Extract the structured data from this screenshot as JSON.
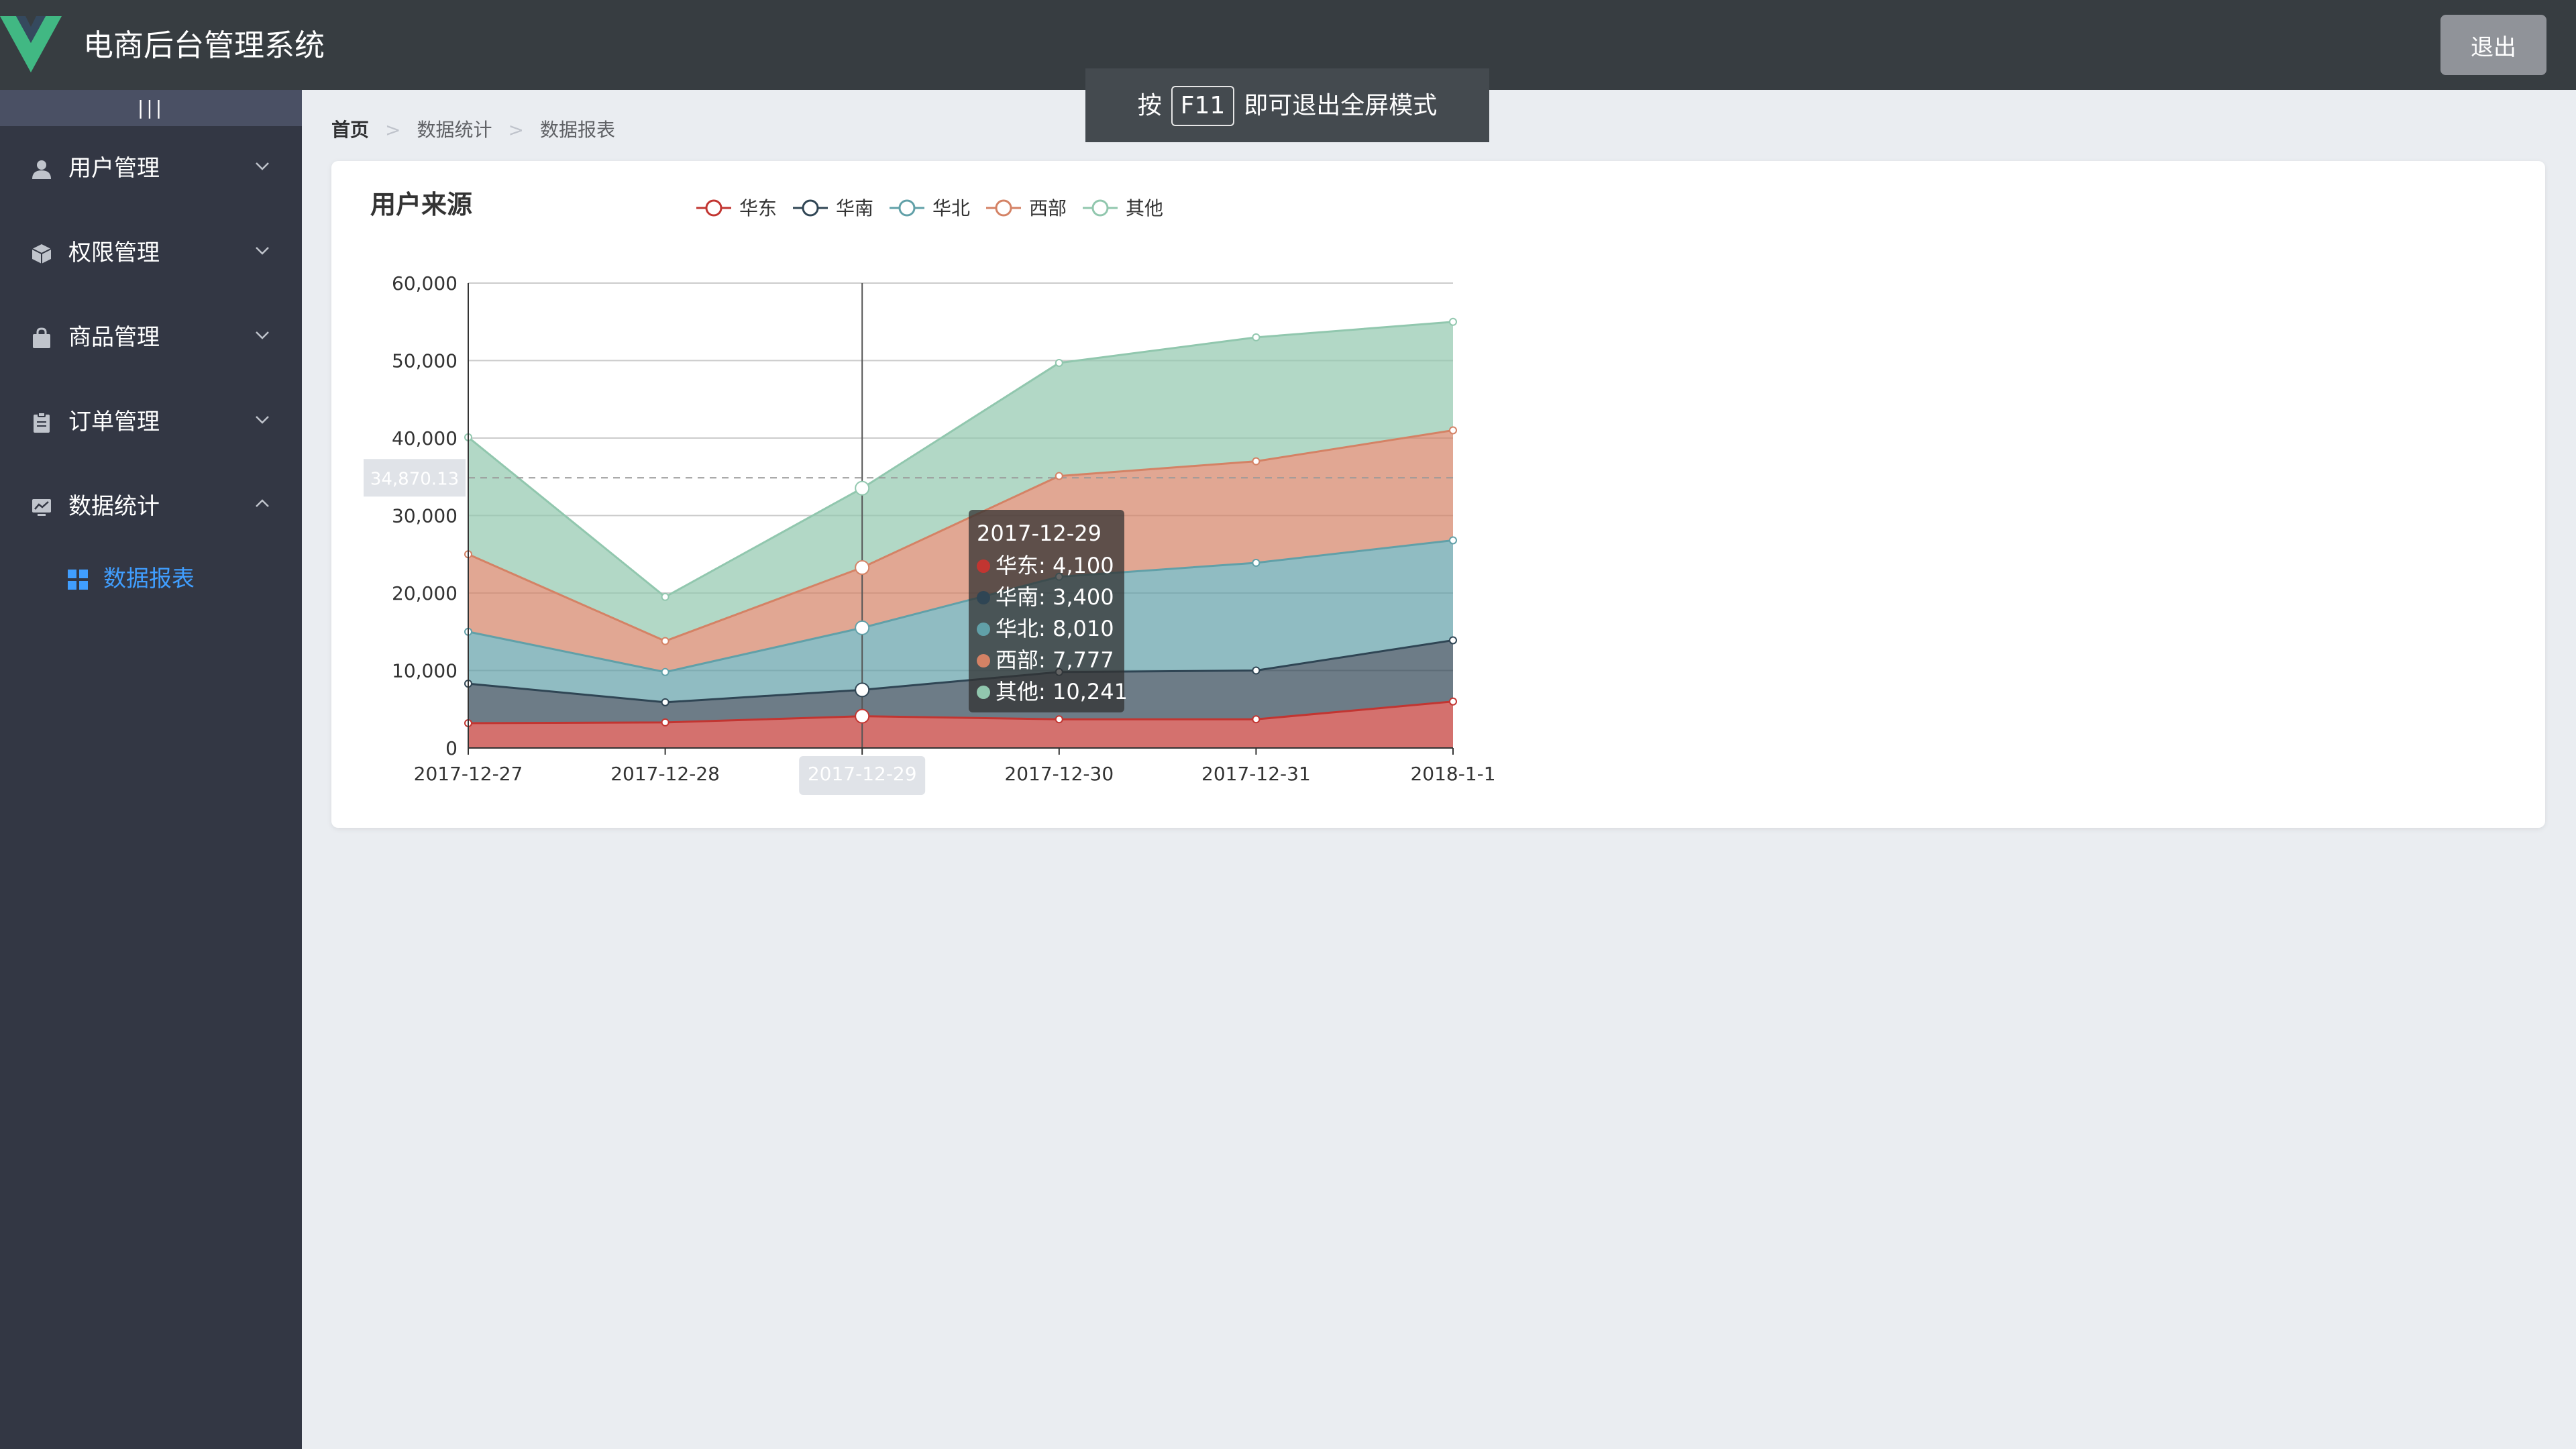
{
  "header": {
    "title": "电商后台管理系统",
    "logout_label": "退出"
  },
  "sidebar": {
    "toggle_label": "|||",
    "items": [
      {
        "label": "用户管理",
        "icon": "user-icon",
        "expanded": false
      },
      {
        "label": "权限管理",
        "icon": "box-icon",
        "expanded": false
      },
      {
        "label": "商品管理",
        "icon": "bag-icon",
        "expanded": false
      },
      {
        "label": "订单管理",
        "icon": "clipboard-icon",
        "expanded": false
      },
      {
        "label": "数据统计",
        "icon": "chart-icon",
        "expanded": true,
        "children": [
          {
            "label": "数据报表",
            "icon": "grid-icon",
            "active": true
          }
        ]
      }
    ]
  },
  "breadcrumb": {
    "home": "首页",
    "level1": "数据统计",
    "level2": "数据报表"
  },
  "fullscreen_toast": {
    "prefix": "按",
    "key": "F11",
    "suffix": "即可退出全屏模式"
  },
  "chart_data": {
    "type": "area",
    "title": "用户来源",
    "stacked": true,
    "categories": [
      "2017-12-27",
      "2017-12-28",
      "2017-12-29",
      "2017-12-30",
      "2017-12-31",
      "2018-1-1"
    ],
    "yticks": [
      "0",
      "10,000",
      "20,000",
      "30,000",
      "40,000",
      "50,000",
      "60,000"
    ],
    "ylim": [
      0,
      60000
    ],
    "grid": true,
    "legend_position": "top",
    "series": [
      {
        "name": "华东",
        "color": "#c23531",
        "values": [
          3200,
          3300,
          4100,
          3700,
          3700,
          6000
        ]
      },
      {
        "name": "华南",
        "color": "#2f4554",
        "values": [
          5100,
          2600,
          3400,
          6100,
          6300,
          7900
        ]
      },
      {
        "name": "华北",
        "color": "#61a0a8",
        "values": [
          6700,
          3900,
          8010,
          12300,
          13900,
          12900
        ]
      },
      {
        "name": "西部",
        "color": "#d48265",
        "values": [
          10000,
          4000,
          7777,
          13000,
          13100,
          14200
        ]
      },
      {
        "name": "其他",
        "color": "#91c7ae",
        "values": [
          15100,
          5700,
          10241,
          14600,
          16000,
          14000
        ]
      }
    ],
    "axis_pointer": {
      "category": "2017-12-29",
      "y_label": "34,870.13",
      "y_value": 34870.13
    },
    "tooltip": {
      "title": "2017-12-29",
      "items": [
        "华东: 4,100",
        "华南: 3,400",
        "华北: 8,010",
        "西部: 7,777",
        "其他: 10,241"
      ]
    }
  }
}
